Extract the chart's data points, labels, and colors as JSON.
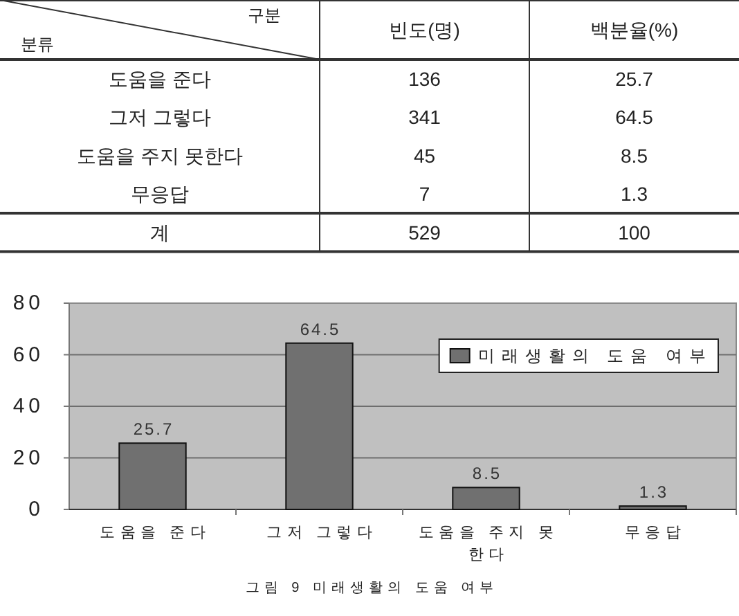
{
  "chart_data": [
    {
      "type": "other",
      "xlabel": "구분",
      "ylabel": "분류",
      "categories": [
        "도움을 준다",
        "그저 그렇다",
        "도움을 주지 못한다",
        "무응답",
        "계"
      ],
      "series": [
        {
          "name": "빈도(명)",
          "values": [
            136,
            341,
            45,
            7,
            529
          ]
        },
        {
          "name": "백분율(%)",
          "values": [
            25.7,
            64.5,
            8.5,
            1.3,
            100
          ]
        }
      ],
      "data_labels": true
    },
    {
      "type": "bar",
      "categories": [
        "도움을 준다",
        "그저 그렇다",
        "도움을 주지 못한다",
        "무응답"
      ],
      "series": [
        {
          "name": "미래생활의 도움 여부",
          "color": "#707070",
          "values": [
            25.7,
            64.5,
            8.5,
            1.3
          ]
        }
      ],
      "ylim": [
        0,
        80
      ],
      "yticks": [
        0,
        20,
        40,
        60,
        80
      ],
      "grid": "y",
      "legend": "top right",
      "data_labels": true,
      "annotations": [
        "그림 9 미래생활의 도움 여부"
      ]
    }
  ]
}
